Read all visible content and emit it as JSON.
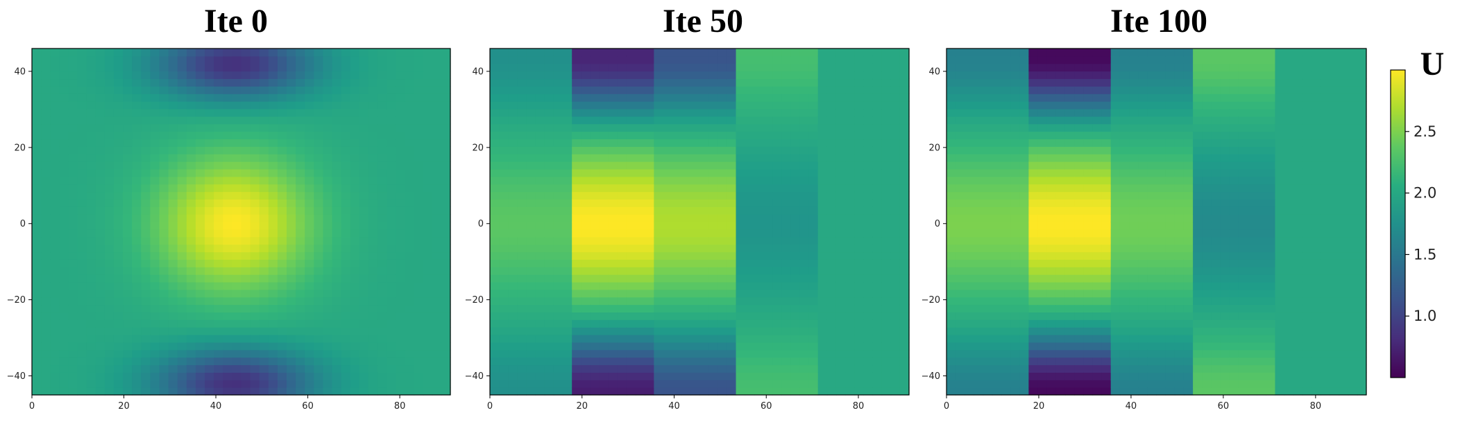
{
  "figure": {
    "colormap": "viridis"
  },
  "chart_data": [
    {
      "type": "heatmap",
      "title": "Ite 0",
      "x_ticks": [
        0,
        20,
        40,
        60,
        80
      ],
      "y_ticks": [
        40,
        20,
        0,
        -20,
        -40
      ],
      "x_tick_labels": [
        "0",
        "20",
        "40",
        "60",
        "80"
      ],
      "y_tick_labels": [
        "40",
        "20",
        "0",
        "−20",
        "−40"
      ],
      "xlim": [
        0,
        91
      ],
      "ylim": [
        -45,
        46
      ],
      "description_values": {
        "peak_center": [
          44,
          0
        ],
        "peak_value": 3.0,
        "min_value": 0.85,
        "background": 2.0
      },
      "columns": [
        {
          "x0": 0,
          "x1": 91,
          "peak": 3.0,
          "top": 0.85,
          "bottom": 0.85,
          "bg": 2.0,
          "cx": 44,
          "sx": 17
        }
      ]
    },
    {
      "type": "heatmap",
      "title": "Ite 50",
      "x_ticks": [
        0,
        20,
        40,
        60,
        80
      ],
      "y_ticks": [
        40,
        20,
        0,
        -20,
        -40
      ],
      "x_tick_labels": [
        "0",
        "20",
        "40",
        "60",
        "80"
      ],
      "y_tick_labels": [
        "40",
        "20",
        "0",
        "−20",
        "−40"
      ],
      "xlim": [
        0,
        91
      ],
      "ylim": [
        -45,
        46
      ],
      "columns": [
        {
          "x0": 0,
          "x1": 18,
          "peak": 2.35,
          "top": 1.75,
          "bottom": 1.75,
          "bg": 2.0
        },
        {
          "x0": 18,
          "x1": 36,
          "peak": 3.0,
          "top": 0.75,
          "bottom": 0.7,
          "bg": 2.0
        },
        {
          "x0": 36,
          "x1": 54,
          "peak": 2.7,
          "top": 1.15,
          "bottom": 1.15,
          "bg": 2.0
        },
        {
          "x0": 54,
          "x1": 72,
          "peak": 1.8,
          "top": 2.25,
          "bottom": 2.25,
          "bg": 2.05
        },
        {
          "x0": 72,
          "x1": 91,
          "peak": 2.0,
          "top": 2.0,
          "bottom": 2.0,
          "bg": 2.0
        }
      ]
    },
    {
      "type": "heatmap",
      "title": "Ite 100",
      "x_ticks": [
        0,
        20,
        40,
        60,
        80
      ],
      "y_ticks": [
        40,
        20,
        0,
        -20,
        -40
      ],
      "x_tick_labels": [
        "0",
        "20",
        "40",
        "60",
        "80"
      ],
      "y_tick_labels": [
        "40",
        "20",
        "0",
        "−20",
        "−40"
      ],
      "xlim": [
        0,
        91
      ],
      "ylim": [
        -45,
        46
      ],
      "columns": [
        {
          "x0": 0,
          "x1": 18,
          "peak": 2.5,
          "top": 1.6,
          "bottom": 1.6,
          "bg": 2.0
        },
        {
          "x0": 18,
          "x1": 36,
          "peak": 3.0,
          "top": 0.55,
          "bottom": 0.55,
          "bg": 2.0
        },
        {
          "x0": 36,
          "x1": 54,
          "peak": 2.45,
          "top": 1.6,
          "bottom": 1.6,
          "bg": 2.0
        },
        {
          "x0": 54,
          "x1": 72,
          "peak": 1.7,
          "top": 2.35,
          "bottom": 2.35,
          "bg": 2.05
        },
        {
          "x0": 72,
          "x1": 91,
          "peak": 2.0,
          "top": 2.0,
          "bottom": 2.0,
          "bg": 2.0
        }
      ]
    }
  ],
  "colorbar": {
    "label": "U",
    "min": 0.5,
    "max": 3.0,
    "ticks": [
      1.0,
      1.5,
      2.0,
      2.5
    ],
    "tick_labels": [
      "1.0",
      "1.5",
      "2.0",
      "2.5"
    ]
  }
}
